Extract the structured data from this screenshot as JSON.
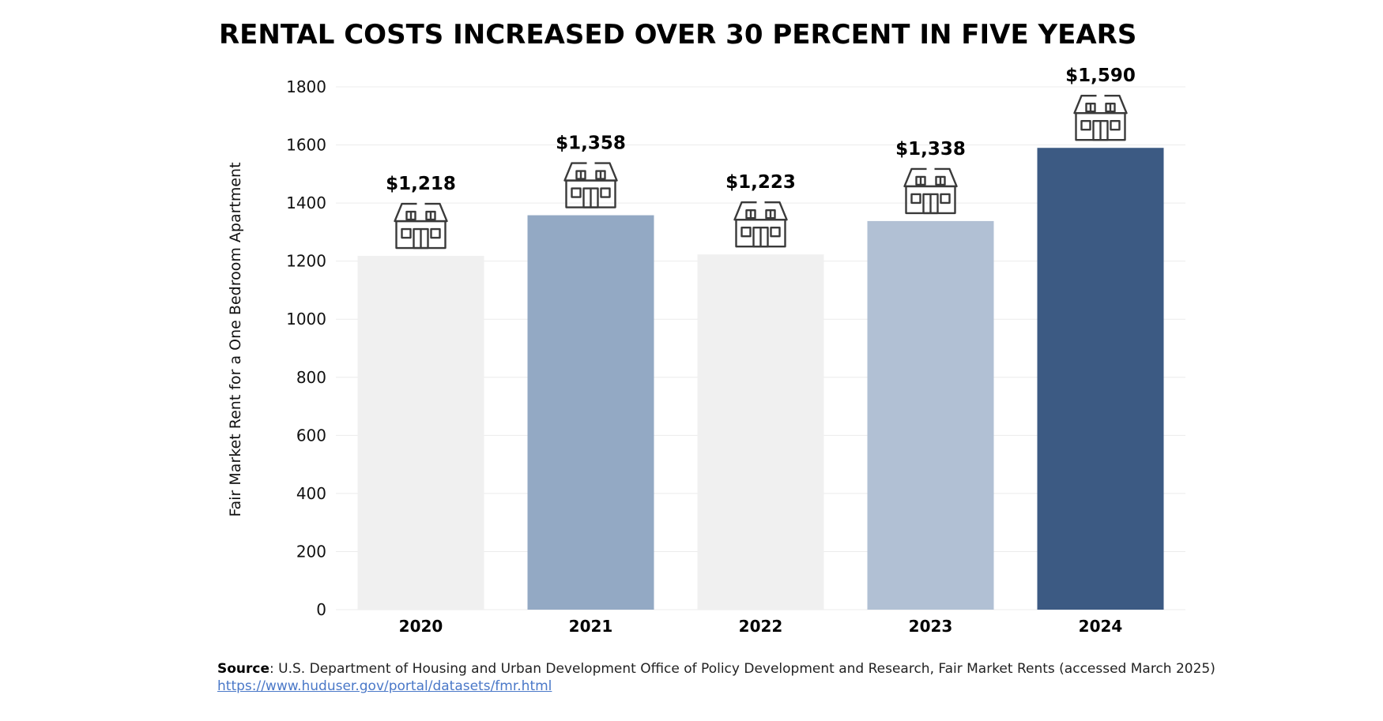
{
  "chart_data": {
    "type": "bar",
    "title": "RENTAL COSTS INCREASED OVER 30 PERCENT IN FIVE YEARS",
    "xlabel": "",
    "ylabel": "Fair Market Rent for a One Bedroom Apartment",
    "categories": [
      "2020",
      "2021",
      "2022",
      "2023",
      "2024"
    ],
    "values": [
      1218,
      1358,
      1223,
      1338,
      1590
    ],
    "data_labels": [
      "$1,218",
      "$1,358",
      "$1,223",
      "$1,338",
      "$1,590"
    ],
    "bar_colors": [
      "#f0f0f0",
      "#93a9c4",
      "#f0f0f0",
      "#b1c0d4",
      "#3c5a83"
    ],
    "ylim": [
      0,
      1800
    ],
    "yticks": [
      0,
      200,
      400,
      600,
      800,
      1000,
      1200,
      1400,
      1600,
      1800
    ],
    "grid": true,
    "legend": "none",
    "icon": "house-icon"
  },
  "source": {
    "label": "Source",
    "text": ": U.S. Department of Housing and Urban Development Office of Policy Development and Research, Fair Market Rents (accessed March 2025)",
    "link": "https://www.huduser.gov/portal/datasets/fmr.html"
  }
}
